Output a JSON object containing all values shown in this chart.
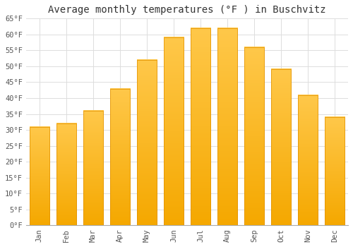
{
  "title": "Average monthly temperatures (°F ) in Buschvitz",
  "months": [
    "Jan",
    "Feb",
    "Mar",
    "Apr",
    "May",
    "Jun",
    "Jul",
    "Aug",
    "Sep",
    "Oct",
    "Nov",
    "Dec"
  ],
  "values": [
    31,
    32,
    36,
    43,
    52,
    59,
    62,
    62,
    56,
    49,
    41,
    34
  ],
  "bar_color_top": "#FFC84A",
  "bar_color_bottom": "#F5A800",
  "bar_edge_color": "#E09000",
  "ylim": [
    0,
    65
  ],
  "yticks": [
    0,
    5,
    10,
    15,
    20,
    25,
    30,
    35,
    40,
    45,
    50,
    55,
    60,
    65
  ],
  "background_color": "#ffffff",
  "grid_color": "#dddddd",
  "title_fontsize": 10,
  "tick_fontsize": 7.5,
  "font_family": "monospace"
}
